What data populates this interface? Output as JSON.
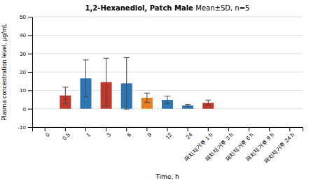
{
  "chart_data": {
    "type": "bar",
    "title": "1,2-Hexanediol, Patch Male",
    "subtitle": "Mean±SD, n=5",
    "xlabel": "Time, h",
    "ylabel": "Plasma concentration level, μg/mL",
    "categories": [
      "0",
      "0.5",
      "1",
      "3",
      "6",
      "9",
      "12",
      "24",
      "패치제거후 1 h",
      "패치제거후 3 h",
      "패치제거후 6 h",
      "패치제거후 9 h",
      "패치제거후 24 h"
    ],
    "values": [
      0,
      7.2,
      16.5,
      14.5,
      13.8,
      6.0,
      4.8,
      1.8,
      3.2,
      0,
      0,
      0,
      0
    ],
    "errors": [
      0,
      4.5,
      10.0,
      13.0,
      14.0,
      2.5,
      2.0,
      0.5,
      1.5,
      0,
      0,
      0,
      0
    ],
    "colors": [
      "#c0c0c0",
      "#c0392b",
      "#2e75b6",
      "#c0392b",
      "#2e75b6",
      "#e67e22",
      "#2e75b6",
      "#2e75b6",
      "#c0392b",
      "#c0c0c0",
      "#c0c0c0",
      "#c0c0c0",
      "#c0c0c0"
    ],
    "ylim": [
      -10,
      50
    ],
    "yticks": [
      -10,
      0,
      10,
      20,
      30,
      40,
      50
    ],
    "grid": true
  }
}
